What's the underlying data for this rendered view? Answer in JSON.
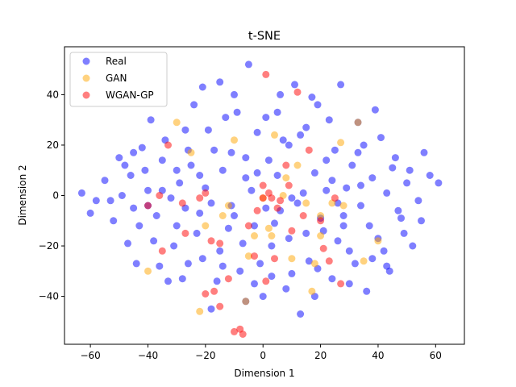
{
  "chart_data": {
    "type": "scatter",
    "title": "t-SNE",
    "xlabel": "Dimension 1",
    "ylabel": "Dimension 2",
    "xlim": [
      -69,
      70
    ],
    "ylim": [
      -59,
      59
    ],
    "xticks": [
      -60,
      -40,
      -20,
      0,
      20,
      40,
      60
    ],
    "yticks": [
      -40,
      -20,
      0,
      20,
      40
    ],
    "grid": false,
    "legend_position": "top-left",
    "series": [
      {
        "name": "Real",
        "color": "#0000ff",
        "alpha": 0.5,
        "points": [
          [
            -63,
            1
          ],
          [
            -60,
            -7
          ],
          [
            -55,
            6
          ],
          [
            -53,
            -2
          ],
          [
            -50,
            15
          ],
          [
            -48,
            12
          ],
          [
            -46,
            8
          ],
          [
            -45,
            -5
          ],
          [
            -42,
            19
          ],
          [
            -40,
            2
          ],
          [
            -38,
            -18
          ],
          [
            -36,
            -28
          ],
          [
            -34,
            22
          ],
          [
            -32,
            -1
          ],
          [
            -30,
            10
          ],
          [
            -28,
            -33
          ],
          [
            -27,
            26
          ],
          [
            -25,
            12
          ],
          [
            -23,
            -15
          ],
          [
            -21,
            43
          ],
          [
            -20,
            3
          ],
          [
            -18,
            -45
          ],
          [
            -17,
            18
          ],
          [
            -15,
            -22
          ],
          [
            -13,
            31
          ],
          [
            -11,
            -4
          ],
          [
            -10,
            40
          ],
          [
            -8,
            -30
          ],
          [
            -6,
            7
          ],
          [
            -5,
            52
          ],
          [
            -3,
            -12
          ],
          [
            -2,
            25
          ],
          [
            0,
            -40
          ],
          [
            2,
            14
          ],
          [
            3,
            -20
          ],
          [
            5,
            33
          ],
          [
            6,
            -6
          ],
          [
            8,
            -37
          ],
          [
            9,
            20
          ],
          [
            11,
            44
          ],
          [
            12,
            -3
          ],
          [
            13,
            -47
          ],
          [
            15,
            27
          ],
          [
            16,
            -26
          ],
          [
            18,
            9
          ],
          [
            19,
            36
          ],
          [
            21,
            -14
          ],
          [
            22,
            2
          ],
          [
            24,
            -33
          ],
          [
            25,
            18
          ],
          [
            27,
            44
          ],
          [
            28,
            -8
          ],
          [
            30,
            -22
          ],
          [
            31,
            12
          ],
          [
            33,
            29
          ],
          [
            34,
            -4
          ],
          [
            36,
            -38
          ],
          [
            38,
            7
          ],
          [
            40,
            -17
          ],
          [
            41,
            23
          ],
          [
            43,
            1
          ],
          [
            44,
            -30
          ],
          [
            46,
            15
          ],
          [
            48,
            -9
          ],
          [
            50,
            5
          ],
          [
            52,
            -20
          ],
          [
            54,
            -2
          ],
          [
            56,
            17
          ],
          [
            58,
            8
          ],
          [
            61,
            5
          ],
          [
            -58,
            -2
          ],
          [
            -52,
            -10
          ],
          [
            -47,
            -19
          ],
          [
            -43,
            -12
          ],
          [
            -41,
            10
          ],
          [
            -37,
            -8
          ],
          [
            -35,
            14
          ],
          [
            -31,
            -20
          ],
          [
            -29,
            5
          ],
          [
            -26,
            -27
          ],
          [
            -24,
            36
          ],
          [
            -22,
            -7
          ],
          [
            -19,
            26
          ],
          [
            -16,
            -34
          ],
          [
            -14,
            10
          ],
          [
            -12,
            -13
          ],
          [
            -9,
            33
          ],
          [
            -7,
            -19
          ],
          [
            -4,
            2
          ],
          [
            -1,
            -27
          ],
          [
            1,
            31
          ],
          [
            4,
            -11
          ],
          [
            7,
            22
          ],
          [
            10,
            -31
          ],
          [
            14,
            1
          ],
          [
            17,
            39
          ],
          [
            20,
            -9
          ],
          [
            23,
            30
          ],
          [
            26,
            -18
          ],
          [
            29,
            3
          ],
          [
            32,
            -27
          ],
          [
            35,
            20
          ],
          [
            37,
            -12
          ],
          [
            39,
            34
          ],
          [
            42,
            -22
          ],
          [
            45,
            11
          ],
          [
            47,
            -6
          ],
          [
            49,
            -15
          ],
          [
            51,
            10
          ],
          [
            55,
            -10
          ],
          [
            -44,
            -27
          ],
          [
            -39,
            30
          ],
          [
            -33,
            -34
          ],
          [
            -27,
            -5
          ],
          [
            -21,
            -25
          ],
          [
            -15,
            45
          ],
          [
            -11,
            17
          ],
          [
            -6,
            -42
          ],
          [
            -2,
            9
          ],
          [
            3,
            -32
          ],
          [
            6,
            40
          ],
          [
            9,
            -17
          ],
          [
            13,
            24
          ],
          [
            18,
            -40
          ],
          [
            22,
            14
          ],
          [
            26,
            -3
          ],
          [
            30,
            -35
          ],
          [
            34,
            4
          ],
          [
            38,
            -25
          ],
          [
            43,
            -28
          ],
          [
            -49,
            0
          ],
          [
            -45,
            17
          ],
          [
            -40,
            -4
          ],
          [
            -35,
            2
          ],
          [
            -30,
            -12
          ],
          [
            -26,
            18
          ],
          [
            -22,
            8
          ],
          [
            -18,
            -3
          ],
          [
            -14,
            -28
          ],
          [
            -10,
            -8
          ],
          [
            -6,
            15
          ],
          [
            -3,
            -35
          ],
          [
            1,
            -5
          ],
          [
            5,
            8
          ],
          [
            10,
            -1
          ],
          [
            15,
            -15
          ],
          [
            19,
            -29
          ],
          [
            24,
            6
          ],
          [
            28,
            -12
          ],
          [
            33,
            17
          ]
        ]
      },
      {
        "name": "GAN",
        "color": "#ffa500",
        "alpha": 0.5,
        "points": [
          [
            -40,
            -30
          ],
          [
            -30,
            29
          ],
          [
            -22,
            -46
          ],
          [
            -14,
            -8
          ],
          [
            -10,
            22
          ],
          [
            -6,
            -42
          ],
          [
            -3,
            -16
          ],
          [
            0,
            -1
          ],
          [
            2,
            -13
          ],
          [
            4,
            24
          ],
          [
            7,
            0
          ],
          [
            10,
            -25
          ],
          [
            12,
            12
          ],
          [
            17,
            -38
          ],
          [
            20,
            -8
          ],
          [
            24,
            -3
          ],
          [
            27,
            21
          ],
          [
            33,
            29
          ],
          [
            35,
            -26
          ],
          [
            40,
            -18
          ],
          [
            -12,
            -4
          ],
          [
            -5,
            -24
          ],
          [
            3,
            -16
          ],
          [
            15,
            -3
          ],
          [
            20,
            -16
          ],
          [
            -25,
            17
          ],
          [
            -20,
            -12
          ],
          [
            8,
            7
          ],
          [
            18,
            -27
          ],
          [
            28,
            -4
          ]
        ]
      },
      {
        "name": "WGAN-GP",
        "color": "#ff0000",
        "alpha": 0.5,
        "points": [
          [
            -36,
            0
          ],
          [
            -35,
            -22
          ],
          [
            -33,
            20
          ],
          [
            -27,
            -15
          ],
          [
            -22,
            -1
          ],
          [
            -20,
            1
          ],
          [
            -18,
            -18
          ],
          [
            -15,
            -44
          ],
          [
            -12,
            -33
          ],
          [
            -8,
            -53
          ],
          [
            -5,
            -12
          ],
          [
            -3,
            -24
          ],
          [
            -2,
            -6
          ],
          [
            0,
            4
          ],
          [
            1,
            48
          ],
          [
            1,
            -34
          ],
          [
            2,
            1
          ],
          [
            4,
            -25
          ],
          [
            6,
            -2
          ],
          [
            8,
            12
          ],
          [
            10,
            -14
          ],
          [
            12,
            41
          ],
          [
            14,
            -8
          ],
          [
            16,
            18
          ],
          [
            20,
            -10
          ],
          [
            23,
            -26
          ],
          [
            25,
            -1
          ],
          [
            27,
            -35
          ],
          [
            -10,
            -54
          ],
          [
            -7,
            -55
          ],
          [
            -40,
            -4
          ],
          [
            -28,
            -3
          ],
          [
            -15,
            -19
          ],
          [
            3,
            -1
          ],
          [
            9,
            4
          ],
          [
            -20,
            -39
          ],
          [
            -17,
            -38
          ],
          [
            0,
            -1
          ],
          [
            5,
            -5
          ],
          [
            21,
            -21
          ]
        ]
      }
    ]
  }
}
